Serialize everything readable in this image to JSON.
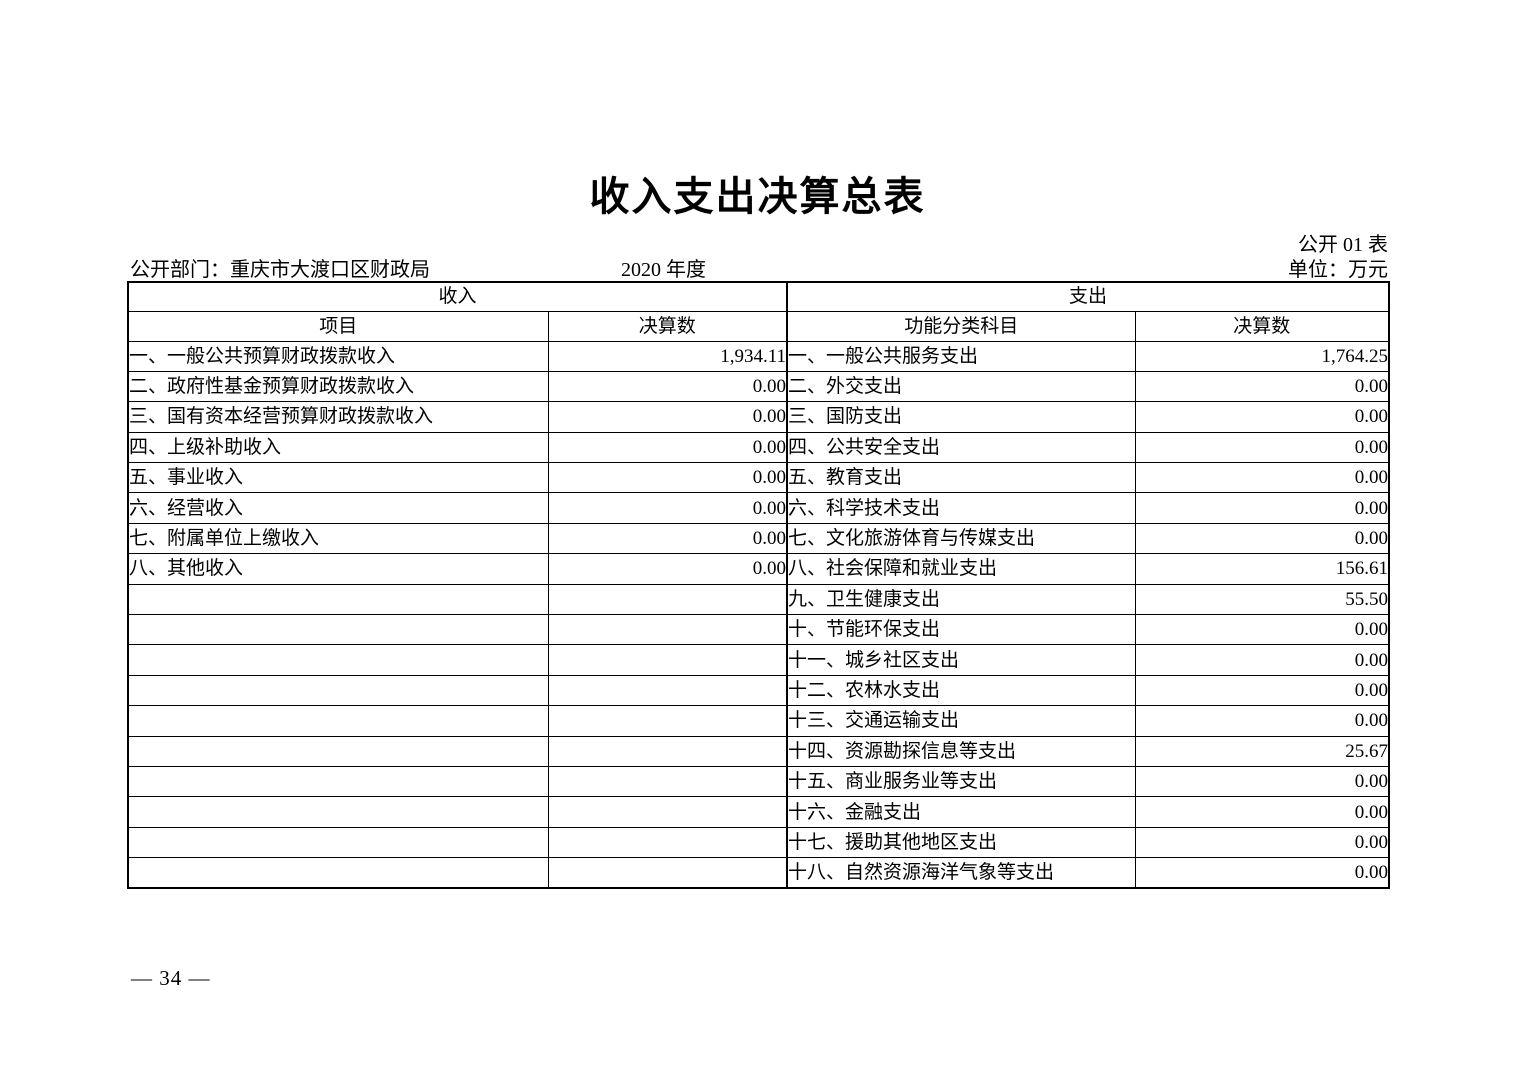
{
  "page": {
    "title": "收入支出决算总表",
    "table_code": "公开 01 表",
    "department": "公开部门：重庆市大渡口区财政局",
    "year": "2020 年度",
    "unit": "单位：万元",
    "page_number": "— 34 —"
  },
  "table": {
    "sections": {
      "income": "收入",
      "expense": "支出"
    },
    "columns": {
      "income_item": "项目",
      "income_amount": "决算数",
      "expense_item": "功能分类科目",
      "expense_amount": "决算数"
    },
    "income_rows": [
      {
        "item": "一、一般公共预算财政拨款收入",
        "amount": "1,934.11"
      },
      {
        "item": "二、政府性基金预算财政拨款收入",
        "amount": "0.00"
      },
      {
        "item": "三、国有资本经营预算财政拨款收入",
        "amount": "0.00"
      },
      {
        "item": "四、上级补助收入",
        "amount": "0.00"
      },
      {
        "item": "五、事业收入",
        "amount": "0.00"
      },
      {
        "item": "六、经营收入",
        "amount": "0.00"
      },
      {
        "item": "七、附属单位上缴收入",
        "amount": "0.00"
      },
      {
        "item": "八、其他收入",
        "amount": "0.00"
      }
    ],
    "expense_rows": [
      {
        "item": "一、一般公共服务支出",
        "amount": "1,764.25"
      },
      {
        "item": "二、外交支出",
        "amount": "0.00"
      },
      {
        "item": "三、国防支出",
        "amount": "0.00"
      },
      {
        "item": "四、公共安全支出",
        "amount": "0.00"
      },
      {
        "item": "五、教育支出",
        "amount": "0.00"
      },
      {
        "item": "六、科学技术支出",
        "amount": "0.00"
      },
      {
        "item": "七、文化旅游体育与传媒支出",
        "amount": "0.00"
      },
      {
        "item": "八、社会保障和就业支出",
        "amount": "156.61"
      },
      {
        "item": "九、卫生健康支出",
        "amount": "55.50"
      },
      {
        "item": "十、节能环保支出",
        "amount": "0.00"
      },
      {
        "item": "十一、城乡社区支出",
        "amount": "0.00"
      },
      {
        "item": "十二、农林水支出",
        "amount": "0.00"
      },
      {
        "item": "十三、交通运输支出",
        "amount": "0.00"
      },
      {
        "item": "十四、资源勘探信息等支出",
        "amount": "25.67"
      },
      {
        "item": "十五、商业服务业等支出",
        "amount": "0.00"
      },
      {
        "item": "十六、金融支出",
        "amount": "0.00"
      },
      {
        "item": "十七、援助其他地区支出",
        "amount": "0.00"
      },
      {
        "item": "十八、自然资源海洋气象等支出",
        "amount": "0.00"
      }
    ]
  }
}
